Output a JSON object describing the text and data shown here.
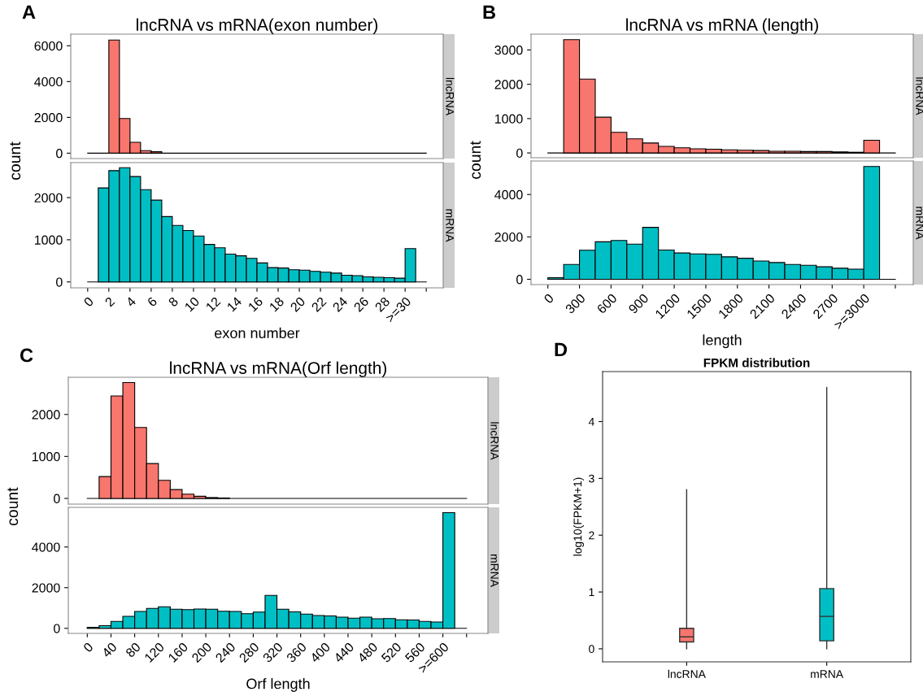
{
  "chart_data": [
    {
      "type": "histogram",
      "title": "lncRNA vs mRNA(exon number)",
      "ylabel": "count",
      "annotations": [
        "A",
        "lncRNA"
      ],
      "tick_labels": "y",
      "color": "#f8766d",
      "bins": [
        0,
        1,
        2,
        3,
        4,
        5,
        6,
        7,
        8,
        9,
        10,
        11,
        12,
        13,
        14,
        15,
        16,
        17,
        18,
        19,
        20,
        21,
        22,
        23,
        24,
        25,
        26,
        27,
        28,
        29,
        30,
        31,
        32
      ],
      "values": [
        0,
        0,
        6320,
        1940,
        610,
        140,
        80,
        null,
        null,
        0,
        0,
        0,
        0,
        0,
        0,
        0,
        0,
        0,
        0,
        0,
        0,
        0,
        0,
        0,
        0,
        0,
        0,
        0,
        0,
        0,
        0,
        0
      ],
      "xlim": [
        -1.6,
        33.6
      ],
      "ylim": [
        -300,
        6650
      ],
      "yticks": [
        0,
        2000,
        4000,
        6000
      ]
    },
    {
      "type": "histogram",
      "xlabel": "exon number",
      "annotations": [
        "mRNA"
      ],
      "color": "#00bfc4",
      "bins": [
        0,
        1,
        2,
        3,
        4,
        5,
        6,
        7,
        8,
        9,
        10,
        11,
        12,
        13,
        14,
        15,
        16,
        17,
        18,
        19,
        20,
        21,
        22,
        23,
        24,
        25,
        26,
        27,
        28,
        29,
        30,
        31,
        32
      ],
      "values": [
        0,
        2230,
        2640,
        2710,
        2500,
        2190,
        1940,
        1550,
        1340,
        1220,
        1090,
        890,
        810,
        660,
        620,
        560,
        450,
        340,
        330,
        290,
        280,
        250,
        230,
        210,
        160,
        150,
        120,
        110,
        100,
        90,
        790,
        0
      ],
      "xlim": [
        -1.6,
        33.6
      ],
      "ylim": [
        -140,
        2830
      ],
      "yticks": [
        0,
        1000,
        2000
      ],
      "xticks": [
        0,
        2,
        4,
        6,
        8,
        10,
        12,
        14,
        16,
        18,
        20,
        22,
        24,
        26,
        28,
        {
          "value": 30,
          "label": ">=30"
        },
        {
          "value": 32,
          "label": null
        }
      ]
    },
    {
      "type": "histogram",
      "title": "lncRNA vs mRNA (length)",
      "ylabel": "count",
      "annotations": [
        "B",
        "lncRNA"
      ],
      "tick_labels": "y",
      "color": "#f8766d",
      "bins": [
        0,
        150,
        300,
        450,
        600,
        750,
        900,
        1050,
        1200,
        1350,
        1500,
        1650,
        1800,
        1950,
        2100,
        2250,
        2400,
        2550,
        2700,
        2850,
        3000,
        3150,
        3300
      ],
      "values": [
        0,
        3300,
        2150,
        1040,
        600,
        410,
        290,
        190,
        150,
        120,
        110,
        90,
        80,
        70,
        50,
        50,
        40,
        40,
        30,
        20,
        370,
        0
      ],
      "xlim": [
        -160,
        3470
      ],
      "ylim": [
        -140,
        3460
      ],
      "yticks": [
        0,
        1000,
        2000,
        3000
      ]
    },
    {
      "type": "histogram",
      "xlabel": "length",
      "annotations": [
        "mRNA"
      ],
      "color": "#00bfc4",
      "bins": [
        0,
        150,
        300,
        450,
        600,
        750,
        900,
        1050,
        1200,
        1350,
        1500,
        1650,
        1800,
        1950,
        2100,
        2250,
        2400,
        2550,
        2700,
        2850,
        3000,
        3150,
        3300
      ],
      "values": [
        70,
        700,
        1370,
        1770,
        1830,
        1660,
        2450,
        1380,
        1240,
        1200,
        1180,
        1060,
        990,
        860,
        790,
        700,
        660,
        590,
        520,
        480,
        5320,
        0
      ],
      "xlim": [
        -160,
        3470
      ],
      "ylim": [
        -250,
        5580
      ],
      "yticks": [
        0,
        2000,
        4000
      ],
      "xticks": [
        0,
        300,
        600,
        900,
        1200,
        1500,
        1800,
        2100,
        2400,
        2700,
        {
          "value": 3000,
          "label": ">=3000"
        },
        {
          "value": 3300,
          "label": null
        }
      ]
    },
    {
      "type": "histogram",
      "title": "lncRNA vs mRNA(Orf length)",
      "ylabel": "count",
      "annotations": [
        "C",
        "lncRNA"
      ],
      "tick_labels": "y",
      "color": "#f8766d",
      "bins": [
        0,
        20,
        40,
        60,
        80,
        100,
        120,
        140,
        160,
        180,
        200,
        220,
        240,
        260,
        280,
        300,
        320,
        340,
        360,
        380,
        400,
        420,
        440,
        460,
        480,
        500,
        520,
        540,
        560,
        580,
        600,
        620,
        640
      ],
      "values": [
        0,
        520,
        2440,
        2760,
        1690,
        830,
        430,
        210,
        100,
        50,
        20,
        10,
        0,
        0,
        0,
        0,
        0,
        0,
        0,
        0,
        0,
        0,
        0,
        0,
        0,
        0,
        0,
        0,
        0,
        0,
        0,
        0
      ],
      "xlim": [
        -32,
        676
      ],
      "ylim": [
        -136,
        2886
      ],
      "yticks": [
        0,
        1000,
        2000
      ]
    },
    {
      "type": "histogram",
      "xlabel": "Orf length",
      "annotations": [
        "mRNA"
      ],
      "color": "#00bfc4",
      "bins": [
        0,
        20,
        40,
        60,
        80,
        100,
        120,
        140,
        160,
        180,
        200,
        220,
        240,
        260,
        280,
        300,
        320,
        340,
        360,
        380,
        400,
        420,
        440,
        460,
        480,
        500,
        520,
        540,
        560,
        580,
        600,
        620,
        640
      ],
      "values": [
        50,
        130,
        340,
        590,
        830,
        980,
        1060,
        940,
        920,
        950,
        940,
        840,
        830,
        720,
        800,
        1620,
        940,
        810,
        700,
        630,
        610,
        550,
        500,
        550,
        470,
        480,
        420,
        410,
        340,
        310,
        5690,
        0
      ],
      "xlim": [
        -32,
        676
      ],
      "ylim": [
        -250,
        5950
      ],
      "yticks": [
        0,
        2000,
        4000
      ],
      "xticks": [
        0,
        40,
        80,
        120,
        160,
        200,
        240,
        280,
        320,
        360,
        400,
        440,
        480,
        520,
        560,
        {
          "value": 600,
          "label": ">=600"
        },
        {
          "value": 640,
          "label": null
        }
      ]
    },
    {
      "type": "box",
      "title": "FPKM distribution",
      "ylabel": "log10(FPKM+1)",
      "annotations": [
        "D"
      ],
      "categories": [
        "lncRNA",
        "mRNA"
      ],
      "colors": [
        "#f8766d",
        "#00bfc4"
      ],
      "boxes": [
        {
          "low": 0,
          "q1": 0.12,
          "median": 0.21,
          "q3": 0.36,
          "high": 2.8
        },
        {
          "low": 0,
          "q1": 0.14,
          "median": 0.57,
          "q3": 1.06,
          "high": 4.6
        }
      ],
      "ylim": [
        -0.23,
        4.88
      ],
      "yticks": [
        0,
        1,
        2,
        3,
        4
      ]
    }
  ]
}
